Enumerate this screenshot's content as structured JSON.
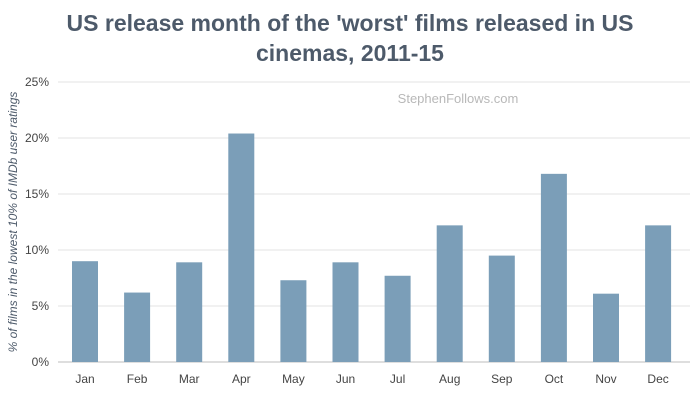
{
  "chart_data": {
    "type": "bar",
    "title_lines": [
      "US release month of the 'worst' films released in US",
      "cinemas, 2011-15"
    ],
    "xlabel": "",
    "ylabel": "% of films in the lowest 10% of IMDb user ratings",
    "watermark": "StephenFollows.com",
    "categories": [
      "Jan",
      "Feb",
      "Mar",
      "Apr",
      "May",
      "Jun",
      "Jul",
      "Aug",
      "Sep",
      "Oct",
      "Nov",
      "Dec"
    ],
    "values": [
      9.0,
      6.2,
      8.9,
      20.4,
      7.3,
      8.9,
      7.7,
      12.2,
      9.5,
      16.8,
      6.1,
      12.2
    ],
    "ylim": [
      0,
      25
    ],
    "yticks": [
      0,
      5,
      10,
      15,
      20,
      25
    ],
    "ytick_labels": [
      "0%",
      "5%",
      "10%",
      "15%",
      "20%",
      "25%"
    ],
    "grid": true,
    "colors": {
      "bar": "#7b9eb8",
      "grid": "#e3e3e3",
      "title": "#4d5a6a"
    }
  }
}
